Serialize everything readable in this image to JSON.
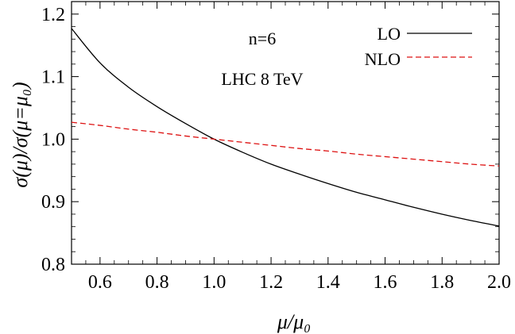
{
  "chart_data": {
    "type": "line",
    "title": "",
    "xlabel": "μ/μ₀",
    "ylabel": "σ(μ)/σ(μ=μ₀)",
    "xlim": [
      0.5,
      2.0
    ],
    "ylim": [
      0.8,
      1.22
    ],
    "xticks": [
      0.6,
      0.8,
      1.0,
      1.2,
      1.4,
      1.6,
      1.8,
      2.0
    ],
    "xtick_labels": [
      "0.6",
      "0.8",
      "1.0",
      "1.2",
      "1.4",
      "1.6",
      "1.8",
      "2.0"
    ],
    "yticks": [
      0.8,
      0.9,
      1.0,
      1.1,
      1.2
    ],
    "ytick_labels": [
      "0.8",
      "0.9",
      "1.0",
      "1.1",
      "1.2"
    ],
    "annotations": [
      "n=6",
      "LHC 8 TeV"
    ],
    "legend_position": "top-right",
    "series": [
      {
        "name": "LO",
        "color": "#000000",
        "style": "solid",
        "x": [
          0.5,
          0.6,
          0.7,
          0.8,
          0.9,
          1.0,
          1.1,
          1.2,
          1.3,
          1.4,
          1.5,
          1.6,
          1.7,
          1.8,
          1.9,
          2.0
        ],
        "y": [
          1.177,
          1.122,
          1.083,
          1.052,
          1.025,
          1.0,
          0.979,
          0.96,
          0.944,
          0.929,
          0.915,
          0.903,
          0.891,
          0.88,
          0.87,
          0.861
        ]
      },
      {
        "name": "NLO",
        "color": "#dd1111",
        "style": "dashed",
        "x": [
          0.5,
          0.6,
          0.7,
          0.8,
          0.9,
          1.0,
          1.1,
          1.2,
          1.3,
          1.4,
          1.5,
          1.6,
          1.7,
          1.8,
          1.9,
          2.0
        ],
        "y": [
          1.027,
          1.022,
          1.016,
          1.011,
          1.005,
          1.0,
          0.995,
          0.99,
          0.985,
          0.981,
          0.976,
          0.972,
          0.968,
          0.964,
          0.96,
          0.957
        ]
      }
    ]
  }
}
